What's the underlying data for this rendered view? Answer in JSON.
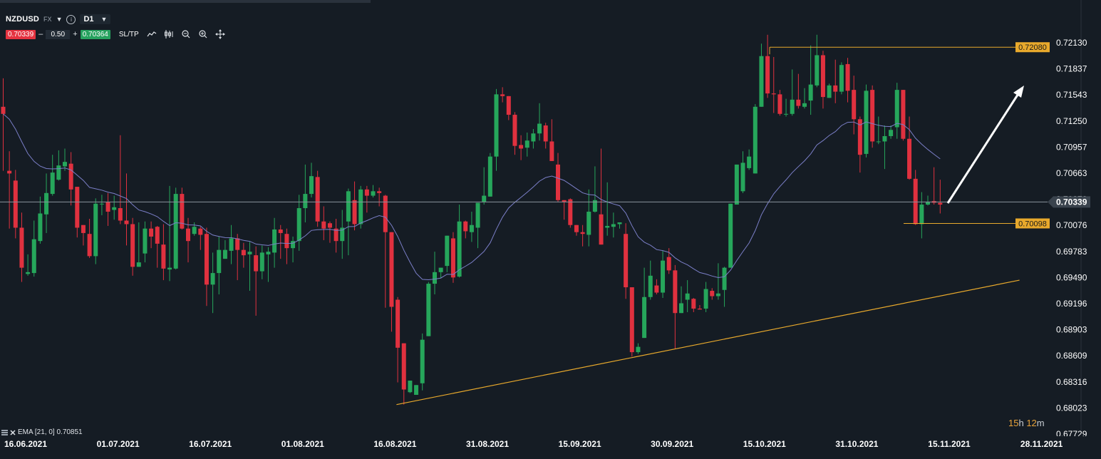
{
  "toolbar": {
    "symbol": "NZDUSD",
    "market": "FX",
    "timeframe": "D1",
    "bid": "0.70339",
    "quantity": "0.50",
    "ask": "0.70364",
    "minus": "–",
    "plus": "+",
    "sltp_label": "SL/TP",
    "info_glyph": "i",
    "caret_glyph": "▼",
    "tools": [
      "line-chart-icon",
      "candlestick-icon",
      "zoom-out-icon",
      "zoom-in-icon",
      "crosshair-move-icon"
    ]
  },
  "indicator_legend": {
    "text": "EMA [21, 0] 0.70851",
    "icons": [
      "indicator-list-icon",
      "remove-indicator-icon"
    ]
  },
  "timer": {
    "hours": "15",
    "h": "h",
    "minutes": "12",
    "m": "m"
  },
  "colors": {
    "background": "#151c24",
    "bull": "#26a65b",
    "bear": "#e0313f",
    "ema": "#7b7fc8",
    "trendline": "#e8a92c",
    "current_price": "#8a939c"
  },
  "chart_data": {
    "type": "candlestick",
    "symbol": "NZDUSD",
    "timeframe": "D1",
    "y_ticks": [
      "0.72130",
      "0.71837",
      "0.71543",
      "0.71250",
      "0.70957",
      "0.70663",
      "0.70370",
      "0.70076",
      "0.69783",
      "0.69490",
      "0.69196",
      "0.68903",
      "0.68609",
      "0.68316",
      "0.68023",
      "0.67729"
    ],
    "ylim": [
      0.67729,
      0.7213
    ],
    "x_ticks": [
      "16.06.2021",
      "01.07.2021",
      "16.07.2021",
      "01.08.2021",
      "16.08.2021",
      "31.08.2021",
      "15.09.2021",
      "30.09.2021",
      "15.10.2021",
      "31.10.2021",
      "15.11.2021",
      "28.11.2021"
    ],
    "current_price": "0.70339",
    "price_level_labels": [
      "0.72080",
      "0.70098"
    ],
    "levels": [
      {
        "name": "resistance",
        "value": 0.7208
      },
      {
        "name": "support",
        "value": 0.70098
      }
    ],
    "trendline": {
      "from": {
        "date": "16.08.2021",
        "value": 0.6806
      },
      "to": {
        "date": "28.11.2021",
        "value": 0.6946
      }
    },
    "ema": {
      "period": 21,
      "shift": 0,
      "last": 0.70851
    },
    "candles": [
      [
        0.7141,
        0.7133,
        0.7173,
        0.7069
      ],
      [
        0.7069,
        0.7066,
        0.7091,
        0.7004
      ],
      [
        0.7058,
        0.7005,
        0.707,
        0.6993
      ],
      [
        0.7005,
        0.696,
        0.7022,
        0.6944
      ],
      [
        0.6953,
        0.6955,
        0.6975,
        0.6951
      ],
      [
        0.6954,
        0.6992,
        0.7013,
        0.695
      ],
      [
        0.699,
        0.7021,
        0.704,
        0.6987
      ],
      [
        0.702,
        0.7044,
        0.7066,
        0.6999
      ],
      [
        0.7043,
        0.7067,
        0.7087,
        0.7041
      ],
      [
        0.7059,
        0.7075,
        0.7092,
        0.7058
      ],
      [
        0.7074,
        0.7079,
        0.7094,
        0.7069
      ],
      [
        0.7077,
        0.7048,
        0.709,
        0.703
      ],
      [
        0.7051,
        0.7005,
        0.7051,
        0.6994
      ],
      [
        0.7008,
        0.6999,
        0.7007,
        0.6985
      ],
      [
        0.6998,
        0.6973,
        0.7015,
        0.6971
      ],
      [
        0.6973,
        0.7032,
        0.7038,
        0.6964
      ],
      [
        0.7032,
        0.7032,
        0.7042,
        0.7019
      ],
      [
        0.7034,
        0.7023,
        0.7044,
        0.7007
      ],
      [
        0.7025,
        0.7028,
        0.7041,
        0.7014
      ],
      [
        0.7027,
        0.7013,
        0.7109,
        0.7009
      ],
      [
        0.7013,
        0.7009,
        0.7066,
        0.6985
      ],
      [
        0.7009,
        0.6961,
        0.7016,
        0.6951
      ],
      [
        0.6961,
        0.6966,
        0.7011,
        0.6961
      ],
      [
        0.6976,
        0.7004,
        0.7012,
        0.6966
      ],
      [
        0.7004,
        0.6995,
        0.7012,
        0.6982
      ],
      [
        0.7006,
        0.6987,
        0.7007,
        0.696
      ],
      [
        0.6986,
        0.6959,
        0.7009,
        0.6946
      ],
      [
        0.6958,
        0.696,
        0.7052,
        0.6945
      ],
      [
        0.6959,
        0.7043,
        0.705,
        0.6958
      ],
      [
        0.7043,
        0.7004,
        0.705,
        0.7003
      ],
      [
        0.7004,
        0.699,
        0.7016,
        0.6966
      ],
      [
        0.6998,
        0.7006,
        0.7011,
        0.6996
      ],
      [
        0.7004,
        0.6997,
        0.7006,
        0.698
      ],
      [
        0.6998,
        0.6941,
        0.7005,
        0.6917
      ],
      [
        0.6941,
        0.6954,
        0.6977,
        0.6909
      ],
      [
        0.6954,
        0.698,
        0.6995,
        0.693
      ],
      [
        0.697,
        0.698,
        0.6991,
        0.6972
      ],
      [
        0.6979,
        0.6993,
        0.7008,
        0.6964
      ],
      [
        0.6993,
        0.698,
        0.6998,
        0.6946
      ],
      [
        0.698,
        0.6974,
        0.6988,
        0.696
      ],
      [
        0.6975,
        0.6978,
        0.6989,
        0.6934
      ],
      [
        0.6974,
        0.6956,
        0.6984,
        0.6906
      ],
      [
        0.6956,
        0.6977,
        0.6985,
        0.6947
      ],
      [
        0.6975,
        0.6978,
        0.6983,
        0.6944
      ],
      [
        0.6977,
        0.7003,
        0.7016,
        0.696
      ],
      [
        0.7003,
        0.6999,
        0.7008,
        0.697
      ],
      [
        0.6998,
        0.6982,
        0.7004,
        0.6964
      ],
      [
        0.6982,
        0.699,
        0.6995,
        0.6966
      ],
      [
        0.699,
        0.7027,
        0.7042,
        0.6979
      ],
      [
        0.7027,
        0.7043,
        0.7076,
        0.7011
      ],
      [
        0.7043,
        0.7063,
        0.7078,
        0.7039
      ],
      [
        0.7062,
        0.7012,
        0.7069,
        0.7006
      ],
      [
        0.7012,
        0.7004,
        0.7029,
        0.6991
      ],
      [
        0.701,
        0.7005,
        0.7012,
        0.6988
      ],
      [
        0.7004,
        0.699,
        0.7015,
        0.6977
      ],
      [
        0.699,
        0.7005,
        0.7025,
        0.697
      ],
      [
        0.7012,
        0.7046,
        0.7049,
        0.6974
      ],
      [
        0.7036,
        0.7009,
        0.7057,
        0.7002
      ],
      [
        0.7009,
        0.7048,
        0.7052,
        0.7004
      ],
      [
        0.7048,
        0.7041,
        0.7052,
        0.7022
      ],
      [
        0.7041,
        0.7046,
        0.7053,
        0.7039
      ],
      [
        0.7046,
        0.7044,
        0.705,
        0.7029
      ],
      [
        0.7041,
        0.7,
        0.7042,
        0.6915
      ],
      [
        0.7,
        0.6916,
        0.696,
        0.6888
      ],
      [
        0.6924,
        0.687,
        0.6927,
        0.6831
      ],
      [
        0.6875,
        0.6823,
        0.6869,
        0.6806
      ],
      [
        0.682,
        0.6833,
        0.6832,
        0.6819
      ],
      [
        0.6817,
        0.6828,
        0.6827,
        0.6818
      ],
      [
        0.683,
        0.6879,
        0.6886,
        0.6822
      ],
      [
        0.6883,
        0.6942,
        0.6944,
        0.6888
      ],
      [
        0.6942,
        0.6955,
        0.6978,
        0.693
      ],
      [
        0.6955,
        0.696,
        0.6958,
        0.6948
      ],
      [
        0.6962,
        0.6996,
        0.6996,
        0.6955
      ],
      [
        0.6993,
        0.6949,
        0.7,
        0.6943
      ],
      [
        0.695,
        0.7012,
        0.7031,
        0.6949
      ],
      [
        0.7012,
        0.7001,
        0.7013,
        0.6993
      ],
      [
        0.7,
        0.7008,
        0.7023,
        0.6989
      ],
      [
        0.7005,
        0.7033,
        0.7033,
        0.6982
      ],
      [
        0.7034,
        0.7041,
        0.7073,
        0.7031
      ],
      [
        0.704,
        0.7085,
        0.7089,
        0.7041
      ],
      [
        0.7085,
        0.7155,
        0.7161,
        0.7069
      ],
      [
        0.7155,
        0.7153,
        0.7163,
        0.7146
      ],
      [
        0.7153,
        0.7132,
        0.7153,
        0.7126
      ],
      [
        0.7132,
        0.7097,
        0.7135,
        0.7087
      ],
      [
        0.7098,
        0.7094,
        0.7109,
        0.7081
      ],
      [
        0.7095,
        0.7103,
        0.7112,
        0.7085
      ],
      [
        0.7102,
        0.7111,
        0.7116,
        0.7094
      ],
      [
        0.7111,
        0.7122,
        0.7145,
        0.7103
      ],
      [
        0.712,
        0.7102,
        0.7123,
        0.7094
      ],
      [
        0.7102,
        0.708,
        0.7127,
        0.7084
      ],
      [
        0.7076,
        0.7036,
        0.7089,
        0.7034
      ],
      [
        0.7036,
        0.7034,
        0.7036,
        0.7014
      ],
      [
        0.7037,
        0.7008,
        0.7038,
        0.7005
      ],
      [
        0.7008,
        0.7,
        0.7007,
        0.6996
      ],
      [
        0.7,
        0.6998,
        0.7008,
        0.6984
      ],
      [
        0.6997,
        0.7023,
        0.7048,
        0.6984
      ],
      [
        0.7023,
        0.7036,
        0.7074,
        0.7022
      ],
      [
        0.702,
        0.6986,
        0.7094,
        0.6986
      ],
      [
        0.7005,
        0.7007,
        0.7056,
        0.6996
      ],
      [
        0.7006,
        0.7009,
        0.7022,
        0.6994
      ],
      [
        0.7009,
        0.7011,
        0.701,
        0.7004
      ],
      [
        0.6998,
        0.6938,
        0.701,
        0.6925
      ],
      [
        0.6938,
        0.6865,
        0.6937,
        0.686
      ],
      [
        0.6865,
        0.6871,
        0.6875,
        0.6863
      ],
      [
        0.6881,
        0.6927,
        0.696,
        0.6881
      ],
      [
        0.6927,
        0.6951,
        0.6968,
        0.6924
      ],
      [
        0.694,
        0.6932,
        0.6947,
        0.693
      ],
      [
        0.6932,
        0.6968,
        0.6979,
        0.6926
      ],
      [
        0.6972,
        0.6957,
        0.6982,
        0.6953
      ],
      [
        0.6957,
        0.6909,
        0.6963,
        0.6869
      ],
      [
        0.6909,
        0.692,
        0.6939,
        0.6909
      ],
      [
        0.6924,
        0.6931,
        0.6946,
        0.691
      ],
      [
        0.6925,
        0.6914,
        0.6926,
        0.691
      ],
      [
        0.6914,
        0.6913,
        0.6918,
        0.6913
      ],
      [
        0.6914,
        0.6936,
        0.6944,
        0.691
      ],
      [
        0.6934,
        0.6928,
        0.6937,
        0.6924
      ],
      [
        0.6928,
        0.6931,
        0.6965,
        0.6924
      ],
      [
        0.6935,
        0.696,
        0.6961,
        0.6916
      ],
      [
        0.696,
        0.7032,
        0.7032,
        0.696
      ],
      [
        0.7031,
        0.7076,
        0.7076,
        0.7031
      ],
      [
        0.7046,
        0.7078,
        0.7091,
        0.7044
      ],
      [
        0.7072,
        0.7085,
        0.7093,
        0.707
      ],
      [
        0.7066,
        0.7141,
        0.7144,
        0.7066
      ],
      [
        0.7141,
        0.7198,
        0.7212,
        0.7141
      ],
      [
        0.7198,
        0.7156,
        0.7222,
        0.7151
      ],
      [
        0.7156,
        0.7155,
        0.7197,
        0.7134
      ],
      [
        0.7155,
        0.7133,
        0.716,
        0.7131
      ],
      [
        0.7133,
        0.7133,
        0.715,
        0.713
      ],
      [
        0.7133,
        0.7149,
        0.7183,
        0.7131
      ],
      [
        0.7149,
        0.7142,
        0.7178,
        0.7139
      ],
      [
        0.7141,
        0.7145,
        0.7162,
        0.7139
      ],
      [
        0.7148,
        0.7166,
        0.721,
        0.7132
      ],
      [
        0.7165,
        0.7199,
        0.7222,
        0.7163
      ],
      [
        0.7199,
        0.7152,
        0.7204,
        0.7139
      ],
      [
        0.7151,
        0.7165,
        0.7167,
        0.716
      ],
      [
        0.7165,
        0.7158,
        0.7194,
        0.7145
      ],
      [
        0.7158,
        0.7188,
        0.7191,
        0.7155
      ],
      [
        0.7189,
        0.7159,
        0.7196,
        0.7146
      ],
      [
        0.716,
        0.7127,
        0.7176,
        0.711
      ],
      [
        0.7127,
        0.7087,
        0.713,
        0.7067
      ],
      [
        0.7088,
        0.7159,
        0.7166,
        0.7084
      ],
      [
        0.716,
        0.7102,
        0.7165,
        0.7095
      ],
      [
        0.7102,
        0.7102,
        0.713,
        0.7099
      ],
      [
        0.7102,
        0.7108,
        0.712,
        0.7071
      ],
      [
        0.7108,
        0.7115,
        0.712,
        0.7105
      ],
      [
        0.7118,
        0.716,
        0.7168,
        0.7105
      ],
      [
        0.716,
        0.7105,
        0.7159,
        0.7103
      ],
      [
        0.7105,
        0.706,
        0.713,
        0.7059
      ],
      [
        0.706,
        0.7009,
        0.707,
        0.7008
      ],
      [
        0.7009,
        0.7031,
        0.7045,
        0.6993
      ],
      [
        0.7031,
        0.7034,
        0.7041,
        0.703
      ],
      [
        0.7035,
        0.7033,
        0.7073,
        0.7031
      ],
      [
        0.7033,
        0.7031,
        0.7059,
        0.7021
      ]
    ]
  }
}
